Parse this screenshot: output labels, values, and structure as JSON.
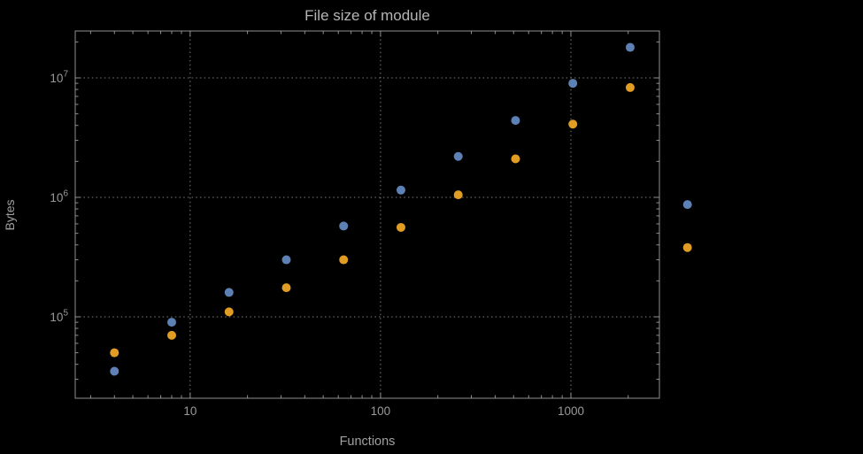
{
  "chart_data": {
    "type": "scatter",
    "title": "File size of module",
    "xlabel": "Functions",
    "ylabel": "Bytes",
    "xscale": "log",
    "yscale": "log",
    "xlim": [
      2.49,
      2918
    ],
    "ylim": [
      20800,
      24700000
    ],
    "grid": true,
    "legend": "none",
    "x": [
      4,
      8,
      16,
      32,
      64,
      128,
      256,
      512,
      1024,
      2048,
      4096
    ],
    "series": [
      {
        "name": "blue-series",
        "color": "#5E81B5",
        "values": [
          35000,
          90000,
          160000,
          300000,
          575000,
          1150000,
          2200000,
          4400000,
          9000000,
          18000000,
          870000
        ]
      },
      {
        "name": "orange-series",
        "color": "#E19C24",
        "values": [
          50000,
          70000,
          110000,
          175000,
          300000,
          560000,
          1050000,
          2100000,
          4100000,
          8300000,
          380000
        ]
      }
    ],
    "x_ticks": [
      10,
      100,
      1000
    ],
    "x_tick_labels": [
      "10",
      "100",
      "1000"
    ],
    "y_ticks": [
      100000,
      1000000,
      10000000
    ],
    "y_tick_exponents": [
      "5",
      "6",
      "7"
    ],
    "colors": {
      "background": "#000000",
      "frame": "#909090",
      "grid": "#7d7d7d",
      "tick": "#909090",
      "title_text": "#b5b5b5",
      "label_text": "#a0a0a0",
      "tick_text": "#9a9a9a"
    }
  }
}
